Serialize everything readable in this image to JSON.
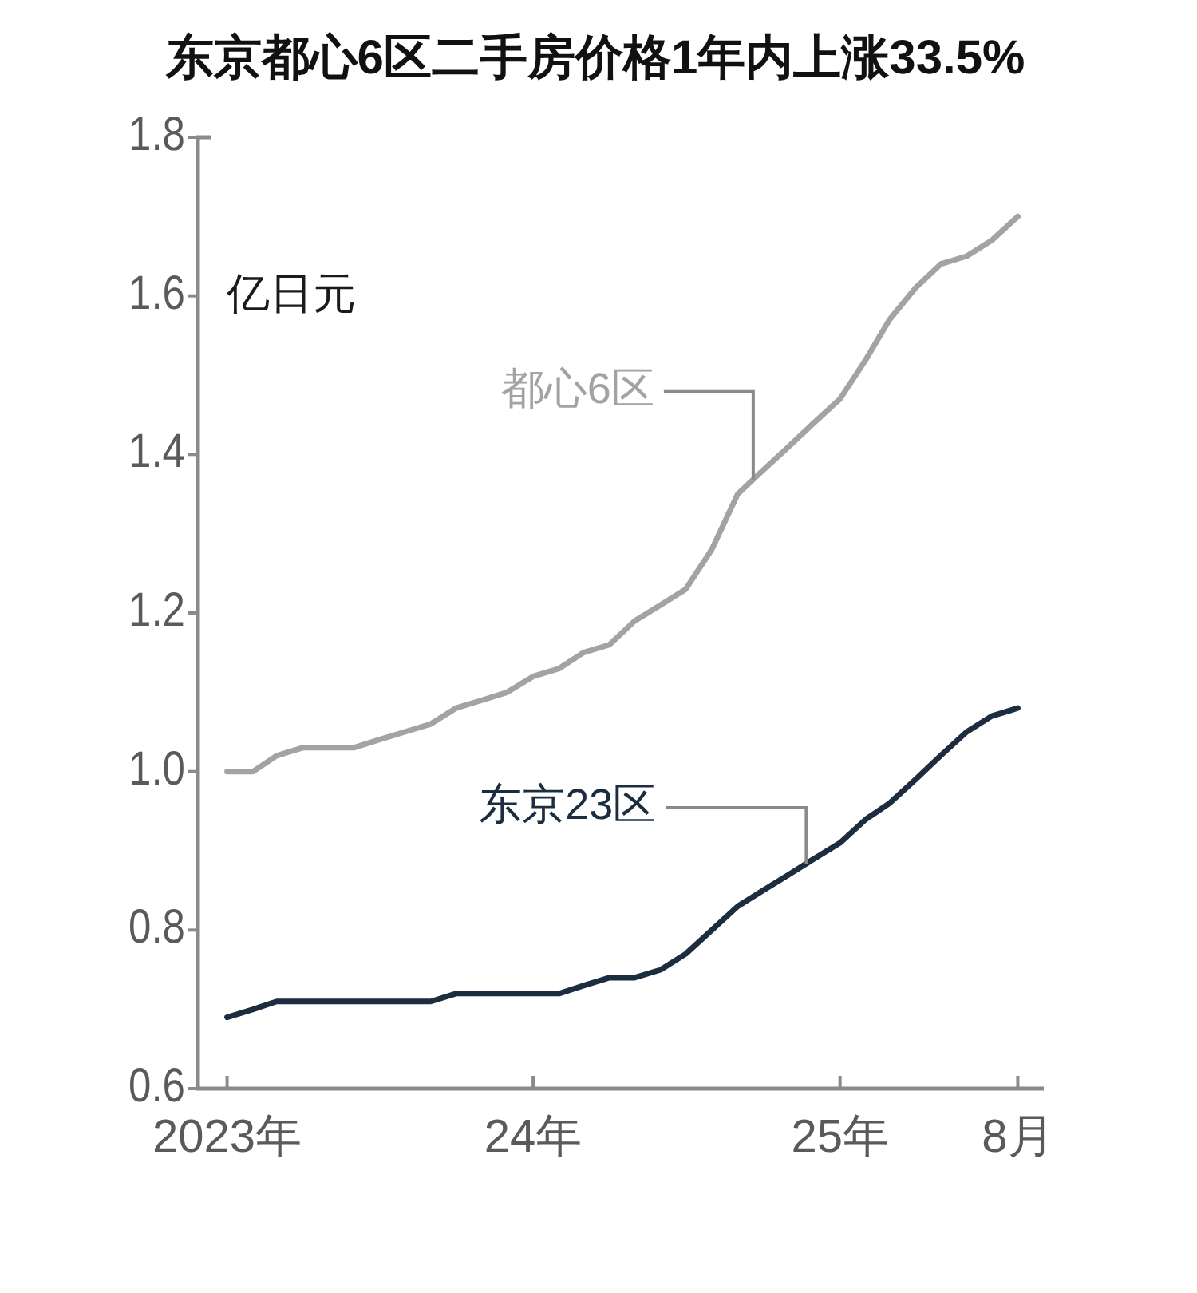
{
  "chart_data": {
    "type": "line",
    "title": "东京都心6区二手房价格1年内上涨33.5%",
    "ylabel": "亿日元",
    "x": [
      "2023-01",
      "2023-02",
      "2023-03",
      "2023-04",
      "2023-05",
      "2023-06",
      "2023-07",
      "2023-08",
      "2023-09",
      "2023-10",
      "2023-11",
      "2023-12",
      "2024-01",
      "2024-02",
      "2024-03",
      "2024-04",
      "2024-05",
      "2024-06",
      "2024-07",
      "2024-08",
      "2024-09",
      "2024-10",
      "2024-11",
      "2024-12",
      "2025-01",
      "2025-02",
      "2025-03",
      "2025-04",
      "2025-05",
      "2025-06",
      "2025-07",
      "2025-08"
    ],
    "series": [
      {
        "name": "都心6区",
        "color": "#a3a3a3",
        "values": [
          1.0,
          1.0,
          1.02,
          1.03,
          1.03,
          1.03,
          1.04,
          1.05,
          1.06,
          1.08,
          1.09,
          1.1,
          1.12,
          1.13,
          1.15,
          1.16,
          1.19,
          1.21,
          1.23,
          1.28,
          1.35,
          1.38,
          1.41,
          1.44,
          1.47,
          1.52,
          1.57,
          1.61,
          1.64,
          1.65,
          1.67,
          1.7
        ]
      },
      {
        "name": "东京23区",
        "color": "#1b2d3f",
        "values": [
          0.69,
          0.7,
          0.71,
          0.71,
          0.71,
          0.71,
          0.71,
          0.71,
          0.71,
          0.72,
          0.72,
          0.72,
          0.72,
          0.72,
          0.73,
          0.74,
          0.74,
          0.75,
          0.77,
          0.8,
          0.83,
          0.85,
          0.87,
          0.89,
          0.91,
          0.94,
          0.96,
          0.99,
          1.02,
          1.05,
          1.07,
          1.08
        ]
      }
    ],
    "xlim": [
      "2022-12",
      "2025-09"
    ],
    "xticks": [
      {
        "value": "2023-01",
        "label": "2023年"
      },
      {
        "value": "2024-01",
        "label": "24年"
      },
      {
        "value": "2025-01",
        "label": "25年"
      },
      {
        "value": "2025-08",
        "label": "8月"
      }
    ],
    "ylim": [
      0.6,
      1.8
    ],
    "yticks": [
      0.6,
      0.8,
      {
        "value": 1.0,
        "label": "1.0"
      },
      1.2,
      1.4,
      1.6,
      1.8
    ],
    "line_style": "solid"
  }
}
